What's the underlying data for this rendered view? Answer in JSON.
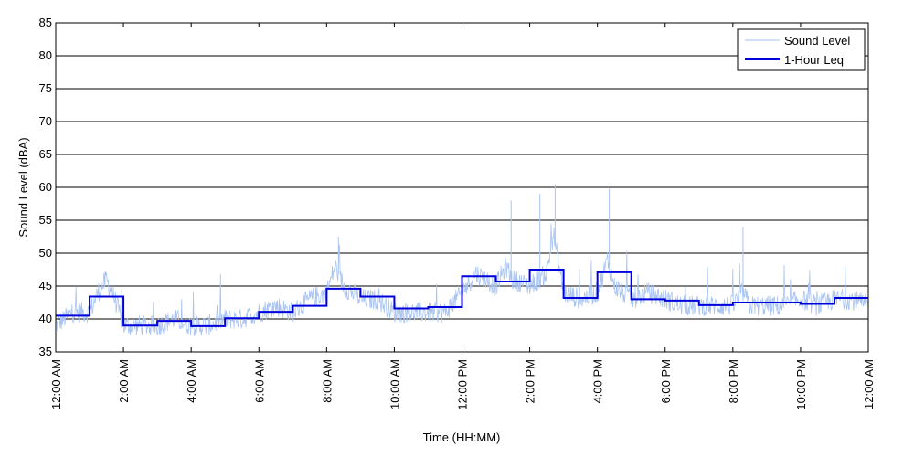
{
  "chart_data": {
    "type": "line",
    "title": "",
    "xlabel": "Time (HH:MM)",
    "ylabel": "Sound Level (dBA)",
    "ylim": [
      35,
      85
    ],
    "xlim_hours": [
      0,
      24
    ],
    "grid": "horizontal",
    "legend_position": "top-right",
    "y_ticks": [
      "35",
      "40",
      "45",
      "50",
      "55",
      "60",
      "65",
      "70",
      "75",
      "80",
      "85"
    ],
    "x_ticks": [
      {
        "hour": 0,
        "label": "12:00 AM"
      },
      {
        "hour": 2,
        "label": "2:00 AM"
      },
      {
        "hour": 4,
        "label": "4:00 AM"
      },
      {
        "hour": 6,
        "label": "6:00 AM"
      },
      {
        "hour": 8,
        "label": "8:00 AM"
      },
      {
        "hour": 10,
        "label": "10:00 AM"
      },
      {
        "hour": 12,
        "label": "12:00 PM"
      },
      {
        "hour": 14,
        "label": "2:00 PM"
      },
      {
        "hour": 16,
        "label": "4:00 PM"
      },
      {
        "hour": 18,
        "label": "6:00 PM"
      },
      {
        "hour": 20,
        "label": "8:00 PM"
      },
      {
        "hour": 22,
        "label": "10:00 PM"
      },
      {
        "hour": 24,
        "label": "12:00 AM"
      }
    ],
    "series": [
      {
        "name": "Sound Level",
        "color": "#a9c4f2",
        "kind": "line",
        "x_hours": [
          0,
          0.5,
          1,
          1.25,
          1.5,
          1.75,
          2,
          2.5,
          3,
          3.5,
          4,
          4.5,
          5,
          5.5,
          6,
          6.5,
          7,
          7.5,
          8,
          8.25,
          8.5,
          9,
          9.5,
          10,
          10.5,
          11,
          11.5,
          12,
          12.4,
          12.7,
          13,
          13.3,
          13.5,
          14,
          14.5,
          14.7,
          15,
          15.5,
          16,
          16.3,
          16.5,
          17,
          17.5,
          18,
          18.5,
          19,
          19.5,
          20,
          20.3,
          20.5,
          21,
          21.5,
          22,
          22.5,
          23,
          23.5,
          24
        ],
        "values": [
          39,
          41,
          41,
          44,
          46,
          43,
          39,
          39,
          39,
          40,
          39,
          39,
          40,
          40,
          41,
          42,
          41,
          43,
          44,
          48,
          45,
          43,
          43,
          41,
          41,
          41,
          41,
          44,
          47,
          46,
          45,
          48,
          46,
          45,
          47,
          53,
          44,
          43,
          44,
          49,
          45,
          43,
          44,
          43,
          42,
          42,
          42,
          42,
          44,
          42,
          42,
          42,
          43,
          42,
          43,
          43,
          42
        ]
      },
      {
        "name": "1-Hour Leq",
        "color": "#0000dd",
        "kind": "step",
        "values": [
          40.5,
          43.4,
          39,
          39.7,
          38.9,
          40.1,
          41.1,
          42,
          44.6,
          43.4,
          41.6,
          41.8,
          46.5,
          45.7,
          47.5,
          43.2,
          47.1,
          43,
          42.8,
          42.1,
          42.5,
          42.5,
          42.3,
          43.2
        ]
      }
    ]
  }
}
